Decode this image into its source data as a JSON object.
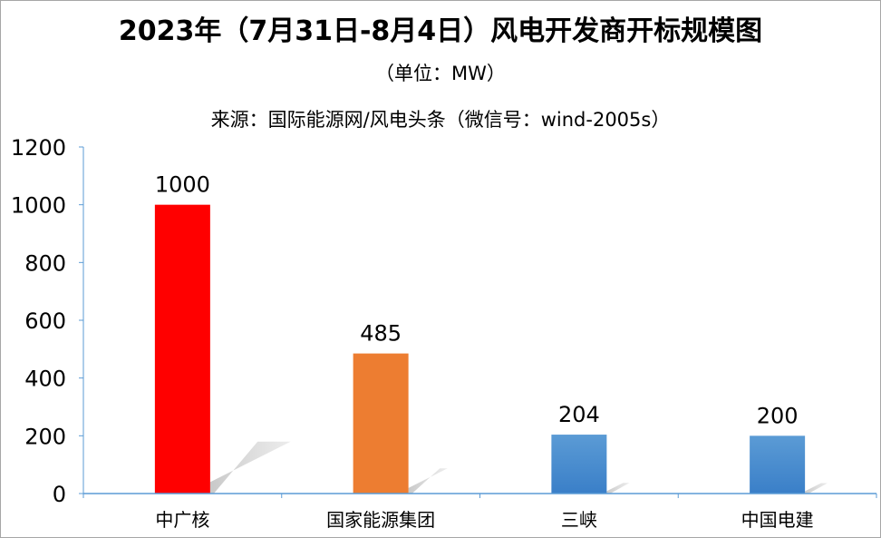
{
  "chart_data": {
    "type": "bar",
    "title": "2023年（7月31日-8月4日）风电开发商开标规模图",
    "subtitle": "（单位：MW）",
    "source": "来源：国际能源网/风电头条（微信号：wind-2005s）",
    "categories": [
      "中广核",
      "国家能源集团",
      "三峡",
      "中国电建"
    ],
    "values": [
      1000,
      485,
      204,
      200
    ],
    "bar_colors": [
      "#ff0000",
      "#ed7d31",
      "#4a8fd6",
      "#4a8fd6"
    ],
    "ylim": [
      0,
      1200
    ],
    "yticks": [
      0,
      200,
      400,
      600,
      800,
      1000,
      1200
    ],
    "xlabel": "",
    "ylabel": "",
    "grid": false,
    "data_labels": true,
    "legend": "none"
  }
}
